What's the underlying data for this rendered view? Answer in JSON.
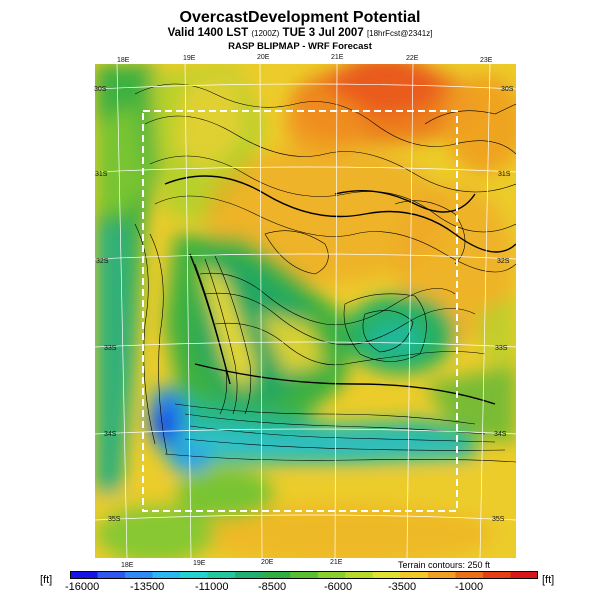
{
  "header": {
    "title": "OvercastDevelopment Potential",
    "valid": "Valid 1400 LST",
    "valid_code": "(1200Z)",
    "valid_date": "TUE 3 Jul 2007",
    "fcst": "[18hrFcst@2341z]",
    "source": "RASP BLIPMAP - WRF Forecast"
  },
  "axes": {
    "top_lon": [
      "18E",
      "19E",
      "20E",
      "21E",
      "22E",
      "23E"
    ],
    "bottom_lon": [
      "18E",
      "19E",
      "20E",
      "21E"
    ],
    "left_lat": [
      "30S",
      "31S",
      "32S",
      "33S",
      "34S",
      "35S"
    ],
    "right_lat": [
      "30S",
      "31S",
      "32S",
      "33S",
      "34S",
      "35S"
    ]
  },
  "terrain_note": "Terrain contours: 250 ft",
  "colorbar": {
    "unit_left": "[ft]",
    "unit_right": "[ft]",
    "labels": [
      "-16000",
      "-13500",
      "-11000",
      "-8500",
      "-6000",
      "-3500",
      "-1000"
    ],
    "colors": [
      "#1414e6",
      "#2f58ee",
      "#2f8cf6",
      "#2ab8f0",
      "#24d2d0",
      "#24c8a0",
      "#22b070",
      "#30b040",
      "#58c030",
      "#88d02a",
      "#b8d82c",
      "#e0e030",
      "#f0c828",
      "#f0a020",
      "#ec7018",
      "#e44014",
      "#d81818"
    ]
  },
  "map_colors": {
    "red": "#e02018",
    "orange": "#f08c20",
    "yellow_orange": "#f0b828",
    "yellow": "#e8d830",
    "yellow_green": "#b8d02c",
    "light_green": "#78c432",
    "green": "#3cb040",
    "teal": "#28b888",
    "cyan": "#30c8d8",
    "blue": "#2080f0",
    "dark_blue": "#1428d8"
  }
}
